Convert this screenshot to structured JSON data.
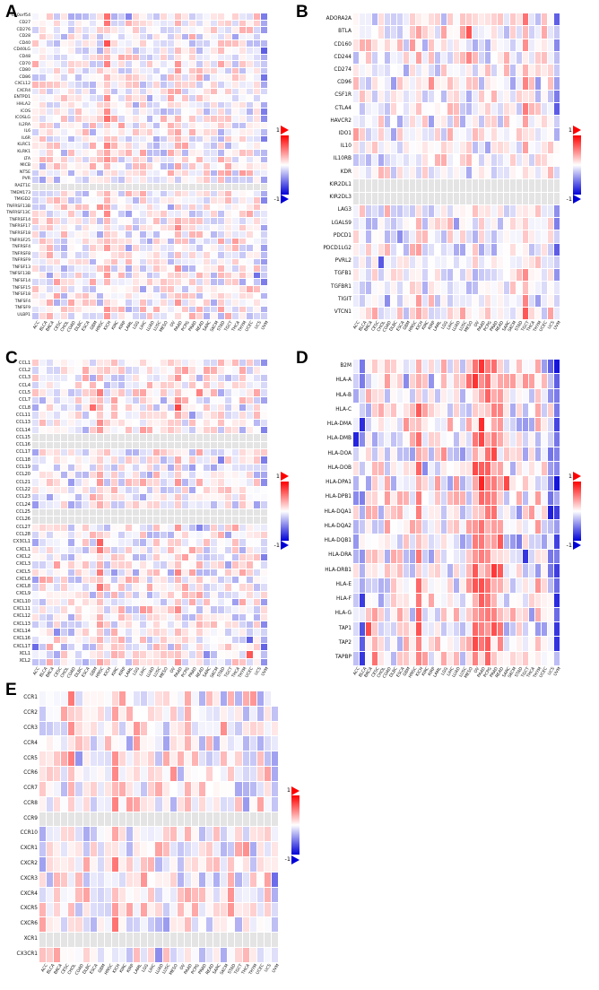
{
  "legend": {
    "max_label": "1",
    "min_label": "-1"
  },
  "colors": {
    "positive": "#ff0000",
    "negative": "#0000d8",
    "na": "#e4e4e4",
    "background": "#ffffff"
  },
  "cancer_types": [
    "ACC",
    "BLCA",
    "BRCA",
    "CESC",
    "CHOL",
    "COAD",
    "DLBC",
    "ESCA",
    "GBM",
    "HNSC",
    "KICH",
    "KIRC",
    "KIRP",
    "LAML",
    "LGG",
    "LIHC",
    "LUAD",
    "LUSC",
    "MESO",
    "OV",
    "PAAD",
    "PCPG",
    "PRAD",
    "READ",
    "SARC",
    "SKCM",
    "STAD",
    "TGCT",
    "THCA",
    "THYM",
    "UCEC",
    "UCS",
    "UVM"
  ],
  "chart_data": [
    {
      "type": "heatmap",
      "panel": "A",
      "rows": [
        "C10orf54",
        "CD27",
        "CD276",
        "CD28",
        "CD40",
        "CD40LG",
        "CD48",
        "CD70",
        "CD80",
        "CD86",
        "CXCL12",
        "CXCR4",
        "ENTPD1",
        "HHLA2",
        "ICOS",
        "ICOSLG",
        "IL2RA",
        "IL6",
        "IL6R",
        "KLRC1",
        "KLRK1",
        "LTA",
        "MICB",
        "NT5E",
        "PVR",
        "RAET1E",
        "TMEM173",
        "TMIGD2",
        "TNFRSF13B",
        "TNFRSF13C",
        "TNFRSF14",
        "TNFRSF17",
        "TNFRSF18",
        "TNFRSF25",
        "TNFRSF4",
        "TNFRSF8",
        "TNFRSF9",
        "TNFSF13",
        "TNFSF13B",
        "TNFSF14",
        "TNFSF15",
        "TNFSF18",
        "TNFSF4",
        "TNFSF9",
        "ULBP1"
      ],
      "na_rows": [
        "RAET1E"
      ],
      "value_range": [
        -1,
        1
      ],
      "amplitude": 0.4,
      "seed": 101,
      "column_bias": {
        "10": 0.3,
        "20": 0.15,
        "32": -0.25
      }
    },
    {
      "type": "heatmap",
      "panel": "B",
      "rows": [
        "ADORA2A",
        "BTLA",
        "CD160",
        "CD244",
        "CD274",
        "CD96",
        "CSF1R",
        "CTLA4",
        "HAVCR2",
        "IDO1",
        "IL10",
        "IL10RB",
        "KDR",
        "KIR2DL1",
        "KIR2DL3",
        "LAG3",
        "LGALS9",
        "PDCD1",
        "PDCD1LG2",
        "PVRL2",
        "TGFB1",
        "TGFBR1",
        "TIGIT",
        "VTCN1"
      ],
      "na_rows": [
        "KIR2DL1",
        "KIR2DL3"
      ],
      "value_range": [
        -1,
        1
      ],
      "amplitude": 0.42,
      "seed": 202,
      "column_bias": {
        "10": 0.2,
        "27": 0.25,
        "32": -0.3
      }
    },
    {
      "type": "heatmap",
      "panel": "C",
      "rows": [
        "CCL1",
        "CCL2",
        "CCL3",
        "CCL4",
        "CCL5",
        "CCL7",
        "CCL8",
        "CCL11",
        "CCL13",
        "CCL14",
        "CCL15",
        "CCL16",
        "CCL17",
        "CCL18",
        "CCL19",
        "CCL20",
        "CCL21",
        "CCL22",
        "CCL23",
        "CCL24",
        "CCL25",
        "CCL26",
        "CCL27",
        "CCL28",
        "CX3CL1",
        "CXCL1",
        "CXCL2",
        "CXCL3",
        "CXCL5",
        "CXCL6",
        "CXCL8",
        "CXCL9",
        "CXCL10",
        "CXCL11",
        "CXCL12",
        "CXCL13",
        "CXCL14",
        "CXCL16",
        "CXCL17",
        "XCL1",
        "XCL2"
      ],
      "na_rows": [
        "CCL15",
        "CCL16",
        "CCL25",
        "CCL26"
      ],
      "value_range": [
        -1,
        1
      ],
      "amplitude": 0.42,
      "seed": 303,
      "column_bias": {
        "0": -0.1,
        "9": 0.25,
        "20": 0.2,
        "32": -0.15
      }
    },
    {
      "type": "heatmap",
      "panel": "D",
      "rows": [
        "B2M",
        "HLA-A",
        "HLA-B",
        "HLA-C",
        "HLA-DMA",
        "HLA-DMB",
        "HLA-DOA",
        "HLA-DOB",
        "HLA-DPA1",
        "HLA-DPB1",
        "HLA-DQA1",
        "HLA-DQA2",
        "HLA-DQB1",
        "HLA-DRA",
        "HLA-DRB1",
        "HLA-E",
        "HLA-F",
        "HLA-G",
        "TAP1",
        "TAP2",
        "TAPBP"
      ],
      "na_rows": [],
      "value_range": [
        -1,
        1
      ],
      "amplitude": 0.5,
      "seed": 404,
      "column_bias": {
        "0": -0.2,
        "1": -0.35,
        "10": 0.5,
        "19": 0.4,
        "20": 0.5,
        "21": 0.45,
        "22": 0.4,
        "23": 0.3,
        "31": -0.2,
        "32": -0.6
      }
    },
    {
      "type": "heatmap",
      "panel": "E",
      "rows": [
        "CCR1",
        "CCR2",
        "CCR3",
        "CCR4",
        "CCR5",
        "CCR6",
        "CCR7",
        "CCR8",
        "CCR9",
        "CCR10",
        "CXCR1",
        "CXCR2",
        "CXCR3",
        "CXCR4",
        "CXCR5",
        "CXCR6",
        "XCR1",
        "CX3CR1"
      ],
      "na_rows": [
        "CCR9",
        "XCR1"
      ],
      "value_range": [
        -1,
        1
      ],
      "amplitude": 0.45,
      "seed": 505,
      "column_bias": {
        "4": 0.2,
        "10": 0.25,
        "20": 0.15,
        "32": -0.25
      }
    }
  ]
}
